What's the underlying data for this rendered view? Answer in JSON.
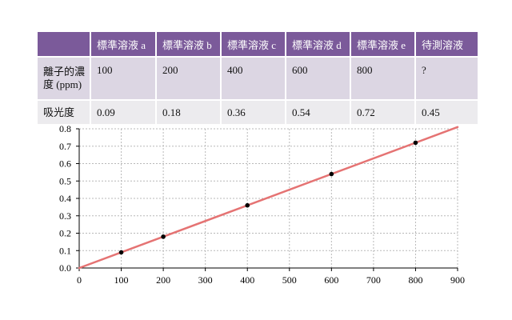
{
  "table": {
    "headers": [
      "",
      "標準溶液 a",
      "標準溶液 b",
      "標準溶液 c",
      "標準溶液 d",
      "標準溶液 e",
      "待測溶液"
    ],
    "row_concentration": {
      "label": "離子的濃度 (ppm)",
      "values": [
        "100",
        "200",
        "400",
        "600",
        "800",
        "?"
      ]
    },
    "row_absorbance": {
      "label": "吸光度",
      "values": [
        "0.09",
        "0.18",
        "0.36",
        "0.54",
        "0.72",
        "0.45"
      ]
    }
  },
  "colors": {
    "header_bg": "#7b5a9a",
    "row1_bg": "#dcd6e3",
    "row2_bg": "#ecebee",
    "line": "#e57373",
    "point": "#000000"
  },
  "chart_data": {
    "type": "scatter",
    "title": "",
    "xlabel": "",
    "ylabel": "",
    "xlim": [
      0,
      900
    ],
    "ylim": [
      0,
      0.8
    ],
    "xticks": [
      0,
      100,
      200,
      300,
      400,
      500,
      600,
      700,
      800,
      900
    ],
    "yticks": [
      0.0,
      0.1,
      0.2,
      0.3,
      0.4,
      0.5,
      0.6,
      0.7,
      0.8
    ],
    "xtick_labels": [
      "0",
      "100",
      "200",
      "300",
      "400",
      "500",
      "600",
      "700",
      "800",
      "900"
    ],
    "ytick_labels": [
      "0.0",
      "0.1",
      "0.2",
      "0.3",
      "0.4",
      "0.5",
      "0.6",
      "0.7",
      "0.8"
    ],
    "grid": true,
    "series": [
      {
        "x": [
          100,
          200,
          400,
          600,
          800
        ],
        "y": [
          0.09,
          0.18,
          0.36,
          0.54,
          0.72
        ]
      }
    ],
    "fit_line": {
      "x": [
        0,
        900
      ],
      "y": [
        0,
        0.81
      ]
    }
  }
}
